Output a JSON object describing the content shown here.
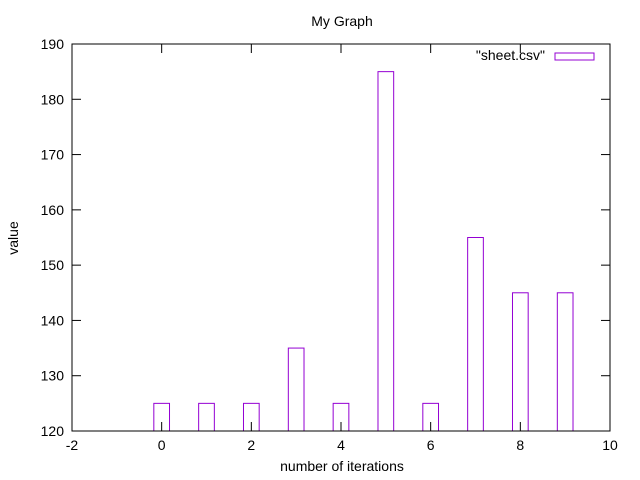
{
  "chart_data": {
    "type": "bar",
    "title": "My Graph",
    "xlabel": "number of iterations",
    "ylabel": "value",
    "xlim": [
      -2,
      10
    ],
    "ylim": [
      120,
      190
    ],
    "x_ticks": [
      -2,
      0,
      2,
      4,
      6,
      8,
      10
    ],
    "y_ticks": [
      120,
      130,
      140,
      150,
      160,
      170,
      180,
      190
    ],
    "grid": false,
    "legend_position": "top-right",
    "series": [
      {
        "name": "\"sheet.csv\"",
        "color": "#9400d3",
        "x": [
          0,
          1,
          2,
          3,
          4,
          5,
          6,
          7,
          8,
          9
        ],
        "values": [
          125,
          125,
          125,
          135,
          125,
          185,
          125,
          155,
          145,
          145
        ]
      }
    ]
  }
}
